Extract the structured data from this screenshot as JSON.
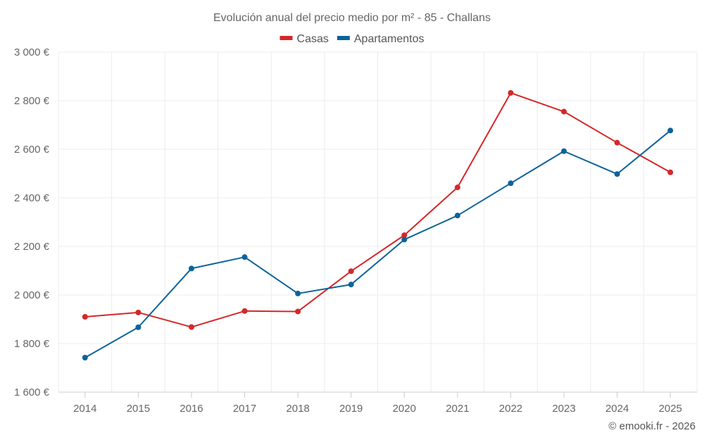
{
  "chart_data": {
    "type": "line",
    "title": "Evolución anual del precio medio por m² - 85 - Challans",
    "categories": [
      "2014",
      "2015",
      "2016",
      "2017",
      "2018",
      "2019",
      "2020",
      "2021",
      "2022",
      "2023",
      "2024",
      "2025"
    ],
    "series": [
      {
        "name": "Casas",
        "color": "#d62728",
        "values": [
          1910,
          1928,
          1868,
          1934,
          1932,
          2098,
          2246,
          2443,
          2832,
          2755,
          2627,
          2505
        ]
      },
      {
        "name": "Apartamentos",
        "color": "#0b6399",
        "values": [
          1742,
          1867,
          2109,
          2156,
          2006,
          2043,
          2228,
          2327,
          2460,
          2592,
          2498,
          2677
        ]
      }
    ],
    "ylim": [
      1600,
      3000
    ],
    "yticks": [
      1600,
      1800,
      2000,
      2200,
      2400,
      2600,
      2800,
      3000
    ],
    "ytick_labels": [
      "1 600 €",
      "1 800 €",
      "2 000 €",
      "2 200 €",
      "2 400 €",
      "2 600 €",
      "2 800 €",
      "3 000 €"
    ],
    "xlabel": "",
    "ylabel": "",
    "grid": true,
    "legend_position": "top-center"
  },
  "credit": "© emooki.fr - 2026"
}
